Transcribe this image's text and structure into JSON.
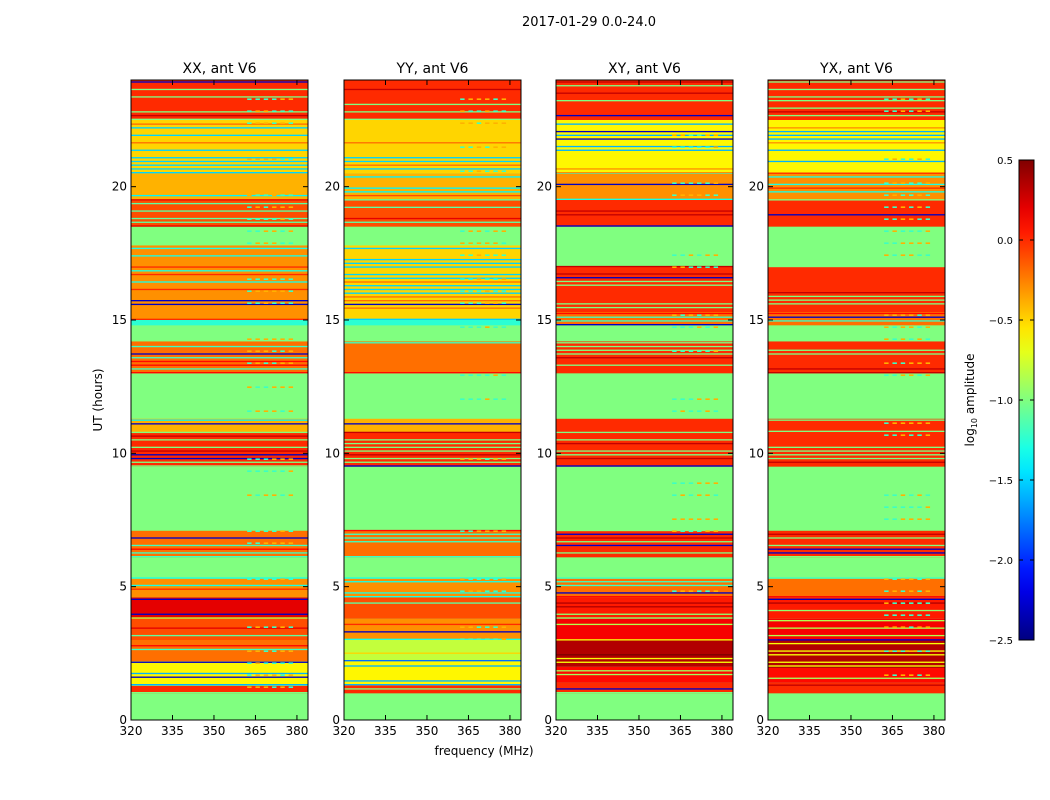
{
  "chart_data": {
    "type": "heatmap",
    "suptitle": "2017-01-29 0.0-24.0",
    "xlabel": "frequency (MHz)",
    "ylabel": "UT (hours)",
    "xlim": [
      320,
      384
    ],
    "ylim": [
      0,
      24
    ],
    "x_ticks": [
      "320",
      "335",
      "350",
      "365",
      "380"
    ],
    "y_ticks": [
      "0",
      "5",
      "10",
      "15",
      "20"
    ],
    "colorbar": {
      "label": "log10 amplitude",
      "label_main": "log",
      "label_sub": "10",
      "label_rest": " amplitude",
      "range": [
        -2.5,
        0.5
      ],
      "ticks": [
        "−2.5",
        "−2.0",
        "−1.5",
        "−1.0",
        "−0.5",
        "0.0",
        "0.5"
      ]
    },
    "panels": [
      {
        "title": "XX, ant V6",
        "bands": [
          [
            0.0,
            1.0,
            -1.0
          ],
          [
            1.0,
            1.3,
            0.0
          ],
          [
            1.3,
            2.2,
            -0.6
          ],
          [
            2.2,
            3.0,
            -0.2
          ],
          [
            3.0,
            3.8,
            -0.1
          ],
          [
            3.8,
            4.6,
            0.2
          ],
          [
            4.6,
            5.3,
            -0.3
          ],
          [
            5.3,
            6.1,
            -1.0
          ],
          [
            6.1,
            7.1,
            -0.2
          ],
          [
            7.1,
            9.5,
            -1.0
          ],
          [
            9.5,
            10.8,
            0.0
          ],
          [
            10.8,
            11.3,
            -0.4
          ],
          [
            11.3,
            13.0,
            -1.0
          ],
          [
            13.0,
            14.2,
            -0.2
          ],
          [
            14.2,
            14.8,
            -1.0
          ],
          [
            14.8,
            15.0,
            -1.25
          ],
          [
            15.0,
            17.8,
            -0.3
          ],
          [
            17.8,
            18.5,
            -1.0
          ],
          [
            18.5,
            19.5,
            -0.1
          ],
          [
            19.5,
            20.5,
            -0.4
          ],
          [
            20.5,
            22.5,
            -0.5
          ],
          [
            22.5,
            24.0,
            0.0
          ]
        ]
      },
      {
        "title": "YY, ant V6",
        "bands": [
          [
            0.0,
            1.0,
            -1.0
          ],
          [
            1.0,
            1.3,
            0.0
          ],
          [
            1.3,
            2.2,
            -0.6
          ],
          [
            2.2,
            3.0,
            -0.8
          ],
          [
            3.0,
            3.8,
            -0.3
          ],
          [
            3.8,
            4.6,
            -0.1
          ],
          [
            4.6,
            5.3,
            -0.3
          ],
          [
            5.3,
            6.1,
            -1.0
          ],
          [
            6.1,
            7.1,
            -0.2
          ],
          [
            7.1,
            9.5,
            -1.0
          ],
          [
            9.5,
            10.8,
            0.0
          ],
          [
            10.8,
            11.3,
            -0.4
          ],
          [
            11.3,
            13.0,
            -1.0
          ],
          [
            13.0,
            14.2,
            -0.2
          ],
          [
            14.2,
            14.8,
            -1.0
          ],
          [
            14.8,
            15.0,
            -1.25
          ],
          [
            15.0,
            17.8,
            -0.5
          ],
          [
            17.8,
            18.5,
            -1.0
          ],
          [
            18.5,
            19.5,
            -0.1
          ],
          [
            19.5,
            20.5,
            -0.4
          ],
          [
            20.5,
            22.5,
            -0.5
          ],
          [
            22.5,
            24.0,
            0.0
          ]
        ]
      },
      {
        "title": "XY, ant V6",
        "bands": [
          [
            0.0,
            1.0,
            -1.0
          ],
          [
            1.0,
            1.4,
            0.0
          ],
          [
            1.4,
            2.0,
            0.1
          ],
          [
            2.0,
            3.0,
            0.35
          ],
          [
            3.0,
            3.8,
            0.15
          ],
          [
            3.8,
            4.6,
            0.05
          ],
          [
            4.6,
            5.3,
            -0.2
          ],
          [
            5.3,
            6.1,
            -1.0
          ],
          [
            6.1,
            7.1,
            0.0
          ],
          [
            7.1,
            9.5,
            -1.0
          ],
          [
            9.5,
            10.8,
            0.0
          ],
          [
            10.8,
            11.3,
            0.0
          ],
          [
            11.3,
            13.0,
            -1.0
          ],
          [
            13.0,
            14.2,
            0.0
          ],
          [
            14.2,
            14.8,
            -1.0
          ],
          [
            14.8,
            15.3,
            -0.2
          ],
          [
            15.3,
            17.0,
            0.0
          ],
          [
            17.0,
            18.5,
            -1.0
          ],
          [
            18.5,
            19.5,
            0.0
          ],
          [
            19.5,
            20.5,
            -0.3
          ],
          [
            20.5,
            22.5,
            -0.6
          ],
          [
            22.5,
            24.0,
            0.0
          ]
        ]
      },
      {
        "title": "YX, ant V6",
        "bands": [
          [
            0.0,
            1.0,
            -1.0
          ],
          [
            1.0,
            1.4,
            0.0
          ],
          [
            1.4,
            2.0,
            0.1
          ],
          [
            2.0,
            3.0,
            0.35
          ],
          [
            3.0,
            3.8,
            0.15
          ],
          [
            3.8,
            4.6,
            0.05
          ],
          [
            4.6,
            5.3,
            -0.2
          ],
          [
            5.3,
            6.1,
            -1.0
          ],
          [
            6.1,
            7.1,
            0.0
          ],
          [
            7.1,
            9.5,
            -1.0
          ],
          [
            9.5,
            10.8,
            0.0
          ],
          [
            10.8,
            11.3,
            0.0
          ],
          [
            11.3,
            13.0,
            -1.0
          ],
          [
            13.0,
            14.2,
            0.0
          ],
          [
            14.2,
            14.8,
            -1.0
          ],
          [
            14.8,
            15.3,
            -0.2
          ],
          [
            15.3,
            17.0,
            0.0
          ],
          [
            17.0,
            18.5,
            -1.0
          ],
          [
            18.5,
            19.5,
            0.0
          ],
          [
            19.5,
            20.5,
            -0.3
          ],
          [
            20.5,
            22.5,
            -0.6
          ],
          [
            22.5,
            24.0,
            0.0
          ]
        ]
      }
    ]
  }
}
